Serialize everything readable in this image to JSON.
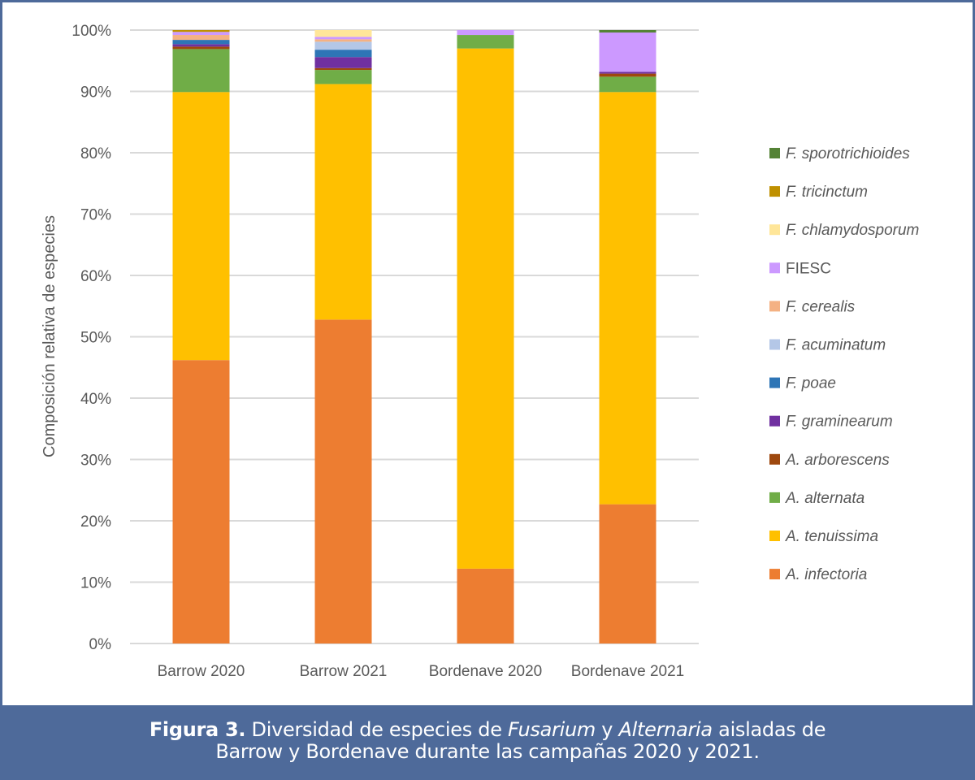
{
  "chart_data": {
    "type": "bar",
    "stacked": true,
    "percent": true,
    "title": "",
    "xlabel": "",
    "ylabel": "Composición relativa de especies",
    "ylim": [
      0,
      100
    ],
    "yticks": [
      "0%",
      "10%",
      "20%",
      "30%",
      "40%",
      "50%",
      "60%",
      "70%",
      "80%",
      "90%",
      "100%"
    ],
    "grid": true,
    "legend_position": "right",
    "categories": [
      "Barrow 2020",
      "Barrow 2021",
      "Bordenave 2020",
      "Bordenave 2021"
    ],
    "series": [
      {
        "name": "A. infectoria",
        "italic": true,
        "color": "#ed7d31",
        "values": [
          46.2,
          52.8,
          12.2,
          22.7
        ]
      },
      {
        "name": "A. tenuissima",
        "italic": true,
        "color": "#ffc000",
        "values": [
          43.7,
          38.4,
          84.8,
          67.2
        ]
      },
      {
        "name": "A. alternata",
        "italic": true,
        "color": "#70ad47",
        "values": [
          7.0,
          2.3,
          2.2,
          2.5
        ]
      },
      {
        "name": "A. arborescens",
        "italic": true,
        "color": "#9e480e",
        "values": [
          0.4,
          0.3,
          0,
          0.5
        ]
      },
      {
        "name": "F. graminearum",
        "italic": true,
        "color": "#7030a0",
        "values": [
          0.4,
          1.8,
          0,
          0.3
        ]
      },
      {
        "name": "F. poae",
        "italic": true,
        "color": "#2e75b6",
        "values": [
          0.7,
          1.2,
          0,
          0
        ]
      },
      {
        "name": "F. acuminatum",
        "italic": true,
        "color": "#b4c7e7",
        "values": [
          0,
          1.3,
          0,
          0
        ]
      },
      {
        "name": "F. cerealis",
        "italic": true,
        "color": "#f4b183",
        "values": [
          0.8,
          0.4,
          0,
          0
        ]
      },
      {
        "name": "FIESC",
        "italic": false,
        "color": "#cc99ff",
        "values": [
          0.5,
          0.4,
          0.8,
          6.4
        ]
      },
      {
        "name": "F. chlamydosporum",
        "italic": true,
        "color": "#ffe699",
        "values": [
          0,
          1.1,
          0,
          0
        ]
      },
      {
        "name": "F. tricinctum",
        "italic": true,
        "color": "#bf9000",
        "values": [
          0.3,
          0,
          0,
          0
        ]
      },
      {
        "name": "F. sporotrichioides",
        "italic": true,
        "color": "#548235",
        "values": [
          0,
          0,
          0,
          0.4
        ]
      }
    ]
  },
  "caption": {
    "label": "Figura 3.",
    "text_1": " Diversidad de especies de ",
    "genus_1": "Fusarium",
    "text_2": " y ",
    "genus_2": "Alternaria",
    "text_3": " aisladas de",
    "line_2": "Barrow y Bordenave durante las campañas 2020 y 2021."
  },
  "colors": {
    "frame": "#4e6a9a",
    "grid": "#d9d9d9",
    "text": "#595959"
  }
}
